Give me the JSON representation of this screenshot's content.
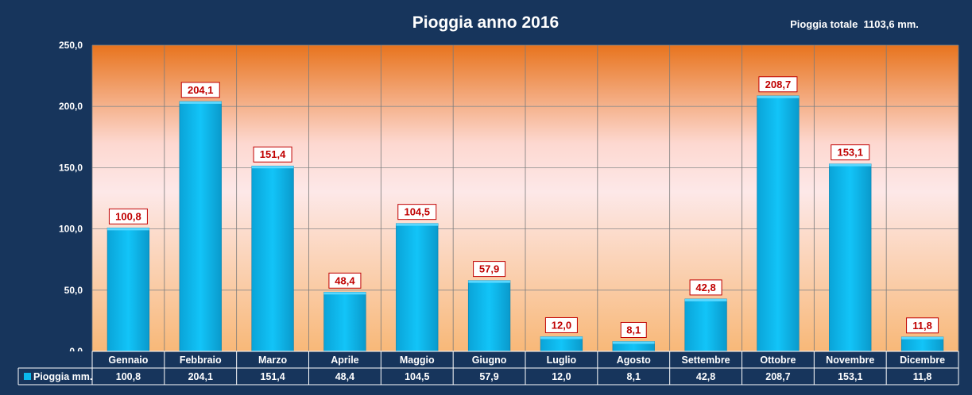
{
  "chart_data": {
    "type": "bar",
    "title": "Pioggia anno 2016",
    "subtitle": "Pioggia totale  1103,6 mm.",
    "categories": [
      "Gennaio",
      "Febbraio",
      "Marzo",
      "Aprile",
      "Maggio",
      "Giugno",
      "Luglio",
      "Agosto",
      "Settembre",
      "Ottobre",
      "Novembre",
      "Dicembre"
    ],
    "series": [
      {
        "name": "Pioggia mm.",
        "values": [
          100.8,
          204.1,
          151.4,
          48.4,
          104.5,
          57.9,
          12.0,
          8.1,
          42.8,
          208.7,
          153.1,
          11.8
        ],
        "labels": [
          "100,8",
          "204,1",
          "151,4",
          "48,4",
          "104,5",
          "57,9",
          "12,0",
          "8,1",
          "42,8",
          "208,7",
          "153,1",
          "11,8"
        ],
        "color": "#0ab8ee"
      }
    ],
    "ylim": [
      0,
      250
    ],
    "yticks": [
      0,
      50,
      100,
      150,
      200,
      250
    ],
    "ytick_labels": [
      "0,0",
      "50,0",
      "100,0",
      "150,0",
      "200,0",
      "250,0"
    ],
    "grid": true,
    "data_table": true,
    "colors": {
      "frame_background": "#17355c",
      "plot_gradient_top": "#e8741e",
      "plot_gradient_middle": "#fde8e8",
      "plot_gradient_bottom": "#f8b878",
      "label_text": "#c00000",
      "label_border": "#c00000",
      "label_fill": "#ffffff"
    }
  }
}
